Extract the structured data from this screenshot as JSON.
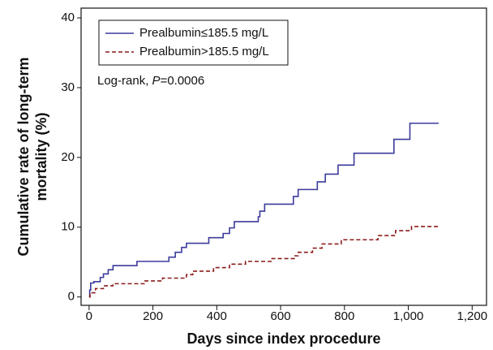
{
  "chart_data": {
    "type": "line",
    "step": "post",
    "xlabel": "Days since index procedure",
    "ylabel": [
      "Cumulative rate of long-term",
      "mortality (%)"
    ],
    "annotation": {
      "prefix": "Log-rank, ",
      "italic": "P",
      "suffix": "=0.0006"
    },
    "xlim": [
      -25,
      1245
    ],
    "ylim": [
      -1.2,
      41.4
    ],
    "xticks": [
      0,
      200,
      400,
      600,
      800,
      {
        "value": 1000,
        "label": "1,000"
      },
      {
        "value": 1200,
        "label": "1,200"
      }
    ],
    "yticks": [
      0,
      10,
      20,
      30,
      40
    ],
    "legend": "upper left",
    "series": [
      {
        "name": "Prealbumin≤185.5 mg/L",
        "color": "#3b3b9c",
        "dash": "solid",
        "x": [
          0,
          2,
          5,
          15,
          35,
          45,
          60,
          75,
          150,
          250,
          270,
          290,
          305,
          375,
          420,
          440,
          455,
          530,
          535,
          550,
          640,
          655,
          715,
          740,
          780,
          830,
          955,
          1005,
          1095
        ],
        "values": [
          0,
          1,
          2,
          2.2,
          2.8,
          3.3,
          3.9,
          4.5,
          5.1,
          5.7,
          6.4,
          7.1,
          7.7,
          8.5,
          9.1,
          9.9,
          10.8,
          11.5,
          12.3,
          13.3,
          14.4,
          15.4,
          16.5,
          17.6,
          18.9,
          20.6,
          22.6,
          24.9,
          24.9
        ]
      },
      {
        "name": "Prealbumin>185.5 mg/L",
        "color": "#8b1c1c",
        "dash": "dashed",
        "x": [
          0,
          3,
          20,
          45,
          75,
          175,
          230,
          305,
          325,
          390,
          440,
          490,
          570,
          645,
          655,
          700,
          730,
          790,
          905,
          960,
          1010,
          1095
        ],
        "values": [
          0,
          0.6,
          1.2,
          1.6,
          1.9,
          2.3,
          2.7,
          3.2,
          3.7,
          4.2,
          4.7,
          5.1,
          5.5,
          5.9,
          6.4,
          7.0,
          7.6,
          8.2,
          8.8,
          9.5,
          10.1,
          10.1
        ]
      }
    ]
  }
}
